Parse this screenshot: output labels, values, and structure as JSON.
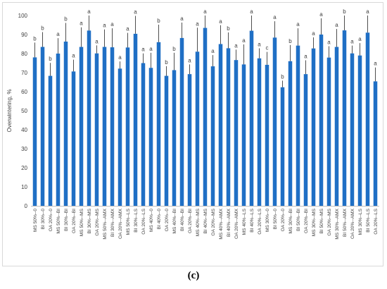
{
  "panel_label": "(c)",
  "chart_data": {
    "type": "bar",
    "ylabel": "Overwintering, %",
    "xlabel": "",
    "ylim": [
      0,
      100
    ],
    "yticks": [
      0,
      10,
      20,
      30,
      40,
      50,
      60,
      70,
      80,
      90,
      100
    ],
    "grid": false,
    "bar_color": "#1f6fc5",
    "error_color": "#222222",
    "categories": [
      "MS 50%--0",
      "BI 30%--0",
      "OA 20%--0",
      "MS 50%--BI",
      "BI 30%--BI",
      "OA 20%--BI",
      "MS 50%--MS",
      "BI 30%--MS",
      "OA 20%--MS",
      "MS 50%--AMX",
      "BI 30%--AMX",
      "OA 20%--AMX",
      "MS 50%--LS",
      "BI 30%--LS",
      "OA 20%--LS",
      "MS 40%--0",
      "BI 40%--0",
      "OA 20%--0",
      "MS 40%--BI",
      "BI 40%--BI",
      "OA 20%--BI",
      "MS 40%--MS",
      "BI 40%--MS",
      "OA 20%--MS",
      "MS 40%--AMX",
      "BI 40%--AMX",
      "OA 20%--AMX",
      "MS 40%--LS",
      "BI 40%--LS",
      "OA 20%--LS",
      "MS 30%--0",
      "BI 50%--0",
      "OA 20%--0",
      "MS 30%--BI",
      "BI 50%--BI",
      "OA 20%--BI",
      "MS 30%--MS",
      "BI 50%--MS",
      "OA 20%--MS",
      "MS 30%--AMX",
      "BI 50%--AMX",
      "OA 20%--AMX",
      "MS 30%--LS",
      "BI 50%--LS",
      "OA 20%--LS"
    ],
    "values": [
      78,
      83.5,
      68.3,
      80,
      86.3,
      70.6,
      83.5,
      92.1,
      80.1,
      83.5,
      83.3,
      72.1,
      83.2,
      90.4,
      75,
      72.5,
      86,
      68.3,
      71.3,
      88.2,
      69.2,
      81,
      93.5,
      73.3,
      85,
      82.8,
      76.6,
      74.3,
      92,
      77.5,
      74.1,
      88.4,
      62.3,
      76,
      84.2,
      69.2,
      82.7,
      90,
      77.9,
      83.5,
      92.2,
      80.1,
      79,
      91,
      65.4
    ],
    "errors": [
      7.8,
      7.8,
      6.8,
      8.1,
      9.8,
      6.2,
      10.3,
      7.9,
      4.2,
      9.2,
      10,
      3.8,
      7.7,
      9.4,
      5.1,
      7.9,
      9.2,
      5.1,
      9.1,
      8.1,
      5.1,
      12.6,
      6.5,
      5.9,
      9.9,
      8.3,
      5.5,
      10.5,
      8,
      5.3,
      6.8,
      8.6,
      3.5,
      8.5,
      9.1,
      7.3,
      5.8,
      8.5,
      6,
      9.4,
      7.8,
      4.1,
      6.5,
      9,
      7.3
    ],
    "significance_labels": [
      "b",
      "b",
      "b",
      "a",
      "b",
      "a",
      "a",
      "a",
      "a",
      "a",
      "a",
      "a",
      "a",
      "a",
      "a",
      "a",
      "b",
      "b",
      "b",
      "a",
      "a",
      "a",
      "a",
      "a",
      "a",
      "b",
      "a",
      "a",
      "a",
      "a",
      "c",
      "a",
      "b",
      "b",
      "a",
      "a",
      "a",
      "a",
      "a",
      "a",
      "b",
      "a",
      "a",
      "a",
      "a"
    ]
  }
}
